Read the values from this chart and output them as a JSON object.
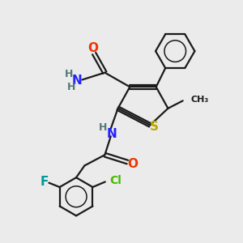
{
  "background_color": "#ebebeb",
  "bond_color": "#1a1a1a",
  "atom_colors": {
    "O": "#ee3300",
    "N": "#2222ff",
    "S": "#bbaa00",
    "F": "#009999",
    "Cl": "#44bb00",
    "H": "#557777",
    "C": "#1a1a1a"
  },
  "figsize": [
    3.0,
    3.0
  ],
  "dpi": 100
}
